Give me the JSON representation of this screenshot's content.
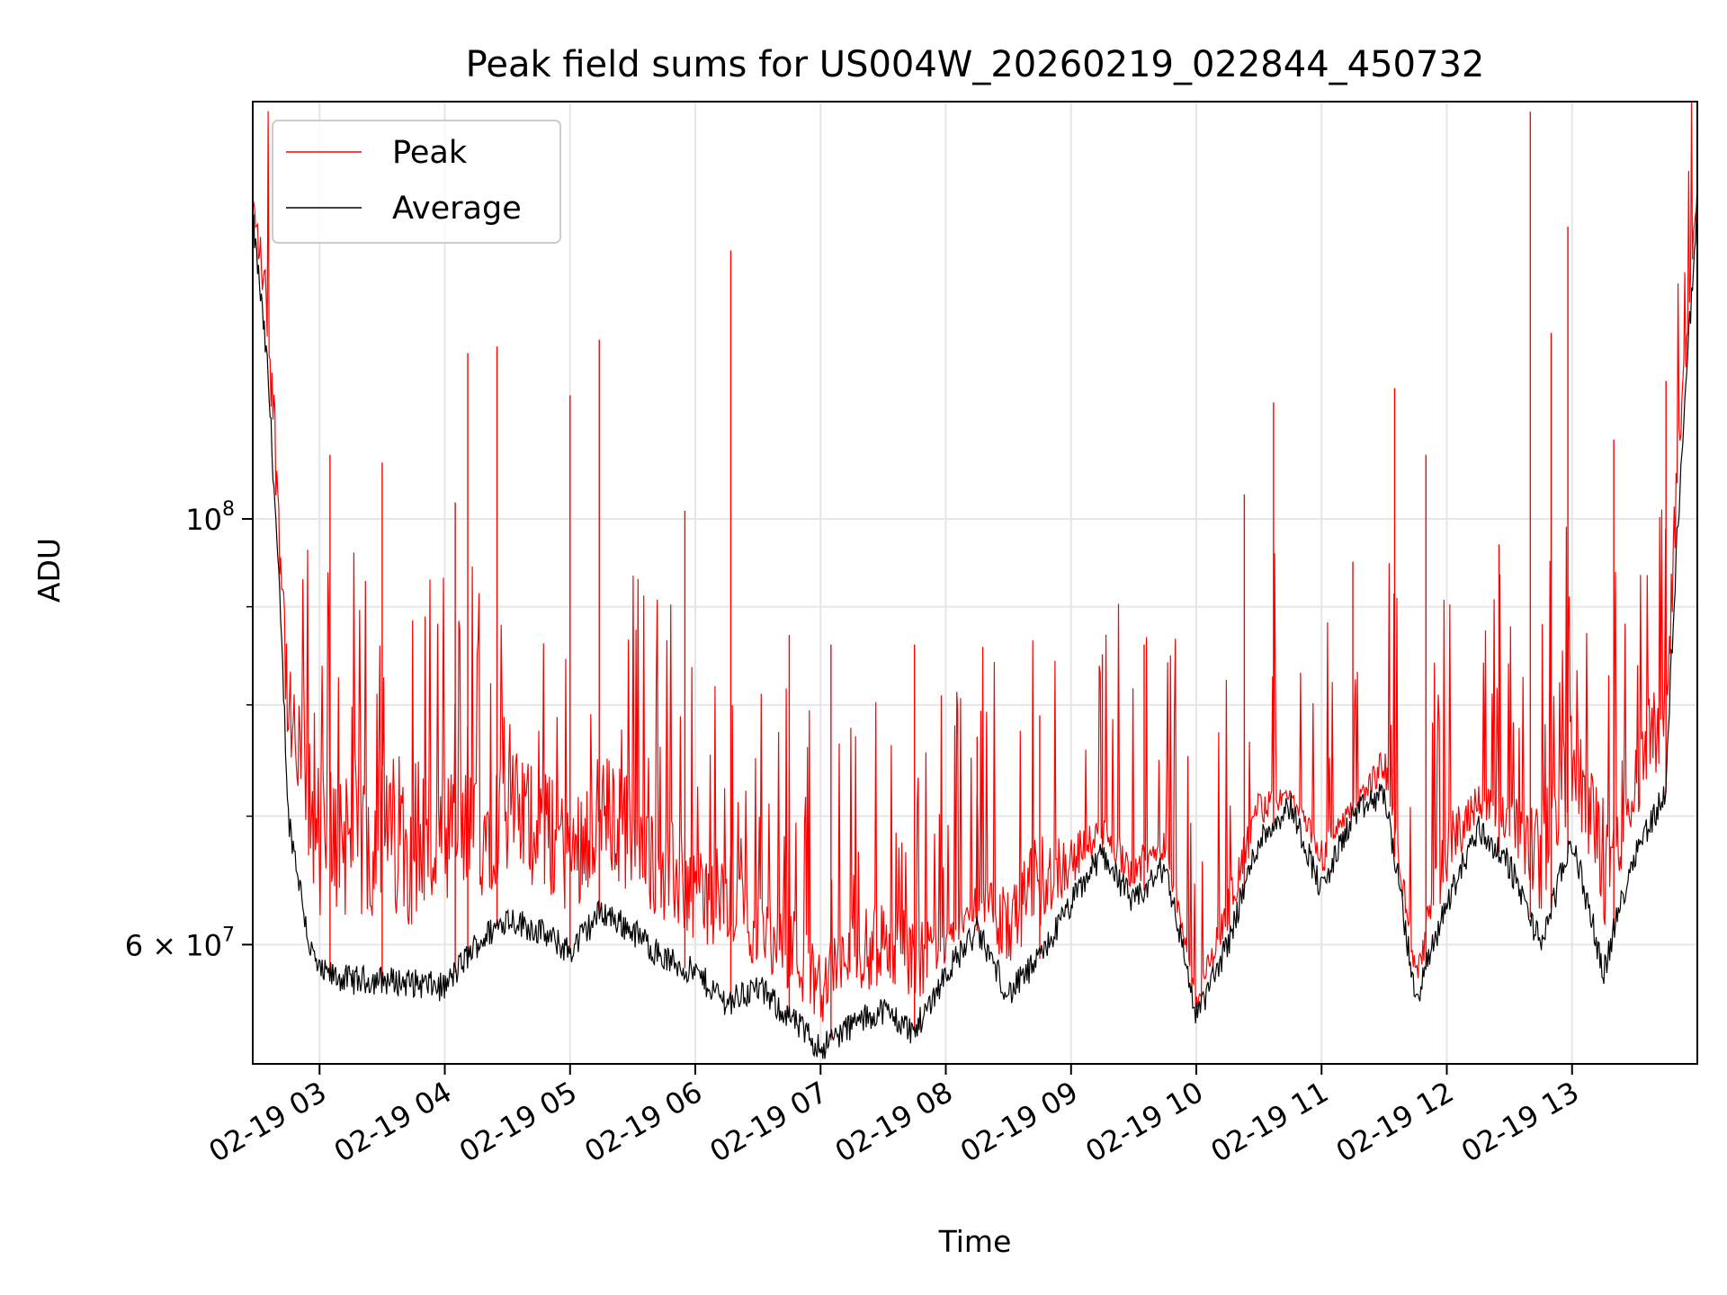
{
  "chart_data": {
    "type": "line",
    "title": "Peak field sums for US004W_20260219_022844_450732",
    "xlabel": "Time",
    "ylabel": "ADU",
    "yscale": "log",
    "grid": true,
    "legend_placement": "upper-left",
    "x_range": [
      "02-19 02:28",
      "02-19 14:00"
    ],
    "ylim": [
      52000000,
      165000000
    ],
    "x_ticks": [
      "02-19 03",
      "02-19 04",
      "02-19 05",
      "02-19 06",
      "02-19 07",
      "02-19 08",
      "02-19 09",
      "02-19 10",
      "02-19 11",
      "02-19 12",
      "02-19 13"
    ],
    "y_major_ticks": [
      {
        "value": 100000000,
        "label_base": "10",
        "label_exp": "8"
      },
      {
        "value": 60000000,
        "label_base": "6 × 10",
        "label_exp": "7"
      }
    ],
    "y_minor_ticks": [
      70000000,
      80000000,
      90000000
    ],
    "colors": {
      "peak": "#ff0000",
      "average": "#000000"
    },
    "series": [
      {
        "name": "Peak",
        "x": [
          "02-19 02:28",
          "02-19 02:35",
          "02-19 02:45",
          "02-19 02:55",
          "02-19 03:00",
          "02-19 03:15",
          "02-19 03:30",
          "02-19 03:45",
          "02-19 04:00",
          "02-19 04:15",
          "02-19 04:30",
          "02-19 04:45",
          "02-19 05:00",
          "02-19 05:15",
          "02-19 05:30",
          "02-19 05:45",
          "02-19 06:00",
          "02-19 06:15",
          "02-19 06:30",
          "02-19 06:45",
          "02-19 07:00",
          "02-19 07:15",
          "02-19 07:30",
          "02-19 07:45",
          "02-19 08:00",
          "02-19 08:15",
          "02-19 08:30",
          "02-19 08:45",
          "02-19 09:00",
          "02-19 09:15",
          "02-19 09:30",
          "02-19 09:45",
          "02-19 10:00",
          "02-19 10:15",
          "02-19 10:30",
          "02-19 10:45",
          "02-19 11:00",
          "02-19 11:15",
          "02-19 11:30",
          "02-19 11:45",
          "02-19 12:00",
          "02-19 12:15",
          "02-19 12:30",
          "02-19 12:45",
          "02-19 13:00",
          "02-19 13:15",
          "02-19 13:30",
          "02-19 13:45",
          "02-19 14:00"
        ],
        "y": [
          147000000,
          130000000,
          80000000,
          72000000,
          70000000,
          71000000,
          70000000,
          71000000,
          69000000,
          70000000,
          72000000,
          71000000,
          68000000,
          72000000,
          70000000,
          67000000,
          65000000,
          64000000,
          62000000,
          61000000,
          58000000,
          60000000,
          61000000,
          60000000,
          60000000,
          64000000,
          62000000,
          66000000,
          67000000,
          69000000,
          66000000,
          68000000,
          56000000,
          63000000,
          71000000,
          72000000,
          67000000,
          71000000,
          75000000,
          58000000,
          68000000,
          72000000,
          70000000,
          68000000,
          76000000,
          68000000,
          74000000,
          82000000,
          148000000
        ],
        "spikes": [
          {
            "x": "02-19 03:05",
            "y": 108000000
          },
          {
            "x": "02-19 03:30",
            "y": 107000000
          },
          {
            "x": "02-19 04:05",
            "y": 102000000
          },
          {
            "x": "02-19 04:11",
            "y": 122000000
          },
          {
            "x": "02-19 04:25",
            "y": 123000000
          },
          {
            "x": "02-19 05:00",
            "y": 116000000
          },
          {
            "x": "02-19 05:14",
            "y": 124000000
          },
          {
            "x": "02-19 05:55",
            "y": 101000000
          },
          {
            "x": "02-19 06:17",
            "y": 138000000
          },
          {
            "x": "02-19 06:45",
            "y": 87000000
          },
          {
            "x": "02-19 07:05",
            "y": 86000000
          },
          {
            "x": "02-19 07:45",
            "y": 86000000
          },
          {
            "x": "02-19 08:15",
            "y": 77000000
          },
          {
            "x": "02-19 08:45",
            "y": 79000000
          },
          {
            "x": "02-19 09:15",
            "y": 85000000
          },
          {
            "x": "02-19 09:35",
            "y": 86000000
          },
          {
            "x": "02-19 10:23",
            "y": 103000000
          },
          {
            "x": "02-19 10:37",
            "y": 115000000
          },
          {
            "x": "02-19 11:15",
            "y": 95000000
          },
          {
            "x": "02-19 11:35",
            "y": 117000000
          },
          {
            "x": "02-19 11:50",
            "y": 108000000
          },
          {
            "x": "02-19 12:25",
            "y": 97000000
          },
          {
            "x": "02-19 12:40",
            "y": 163000000
          },
          {
            "x": "02-19 12:50",
            "y": 125000000
          },
          {
            "x": "02-19 12:58",
            "y": 142000000
          },
          {
            "x": "02-19 13:20",
            "y": 110000000
          },
          {
            "x": "02-19 13:45",
            "y": 118000000
          }
        ]
      },
      {
        "name": "Average",
        "x": [
          "02-19 02:28",
          "02-19 02:35",
          "02-19 02:45",
          "02-19 02:55",
          "02-19 03:00",
          "02-19 03:15",
          "02-19 03:30",
          "02-19 03:45",
          "02-19 04:00",
          "02-19 04:15",
          "02-19 04:30",
          "02-19 04:45",
          "02-19 05:00",
          "02-19 05:15",
          "02-19 05:30",
          "02-19 05:45",
          "02-19 06:00",
          "02-19 06:15",
          "02-19 06:30",
          "02-19 06:45",
          "02-19 07:00",
          "02-19 07:15",
          "02-19 07:30",
          "02-19 07:45",
          "02-19 08:00",
          "02-19 08:15",
          "02-19 08:30",
          "02-19 08:45",
          "02-19 09:00",
          "02-19 09:15",
          "02-19 09:30",
          "02-19 09:45",
          "02-19 10:00",
          "02-19 10:15",
          "02-19 10:30",
          "02-19 10:45",
          "02-19 11:00",
          "02-19 11:15",
          "02-19 11:30",
          "02-19 11:45",
          "02-19 12:00",
          "02-19 12:15",
          "02-19 12:30",
          "02-19 12:45",
          "02-19 13:00",
          "02-19 13:15",
          "02-19 13:30",
          "02-19 13:45",
          "02-19 14:00"
        ],
        "y": [
          143000000,
          120000000,
          70000000,
          60000000,
          58000000,
          57500000,
          57500000,
          57300000,
          57000000,
          60000000,
          62000000,
          61000000,
          59500000,
          62500000,
          61000000,
          59000000,
          58000000,
          56000000,
          57000000,
          55000000,
          53000000,
          54500000,
          55500000,
          54000000,
          58000000,
          61000000,
          56500000,
          59000000,
          63000000,
          67000000,
          63000000,
          66000000,
          55000000,
          60000000,
          68000000,
          71000000,
          64000000,
          70000000,
          72000000,
          56000000,
          63000000,
          69000000,
          66000000,
          60000000,
          68000000,
          58000000,
          67000000,
          72000000,
          144000000
        ]
      }
    ]
  }
}
